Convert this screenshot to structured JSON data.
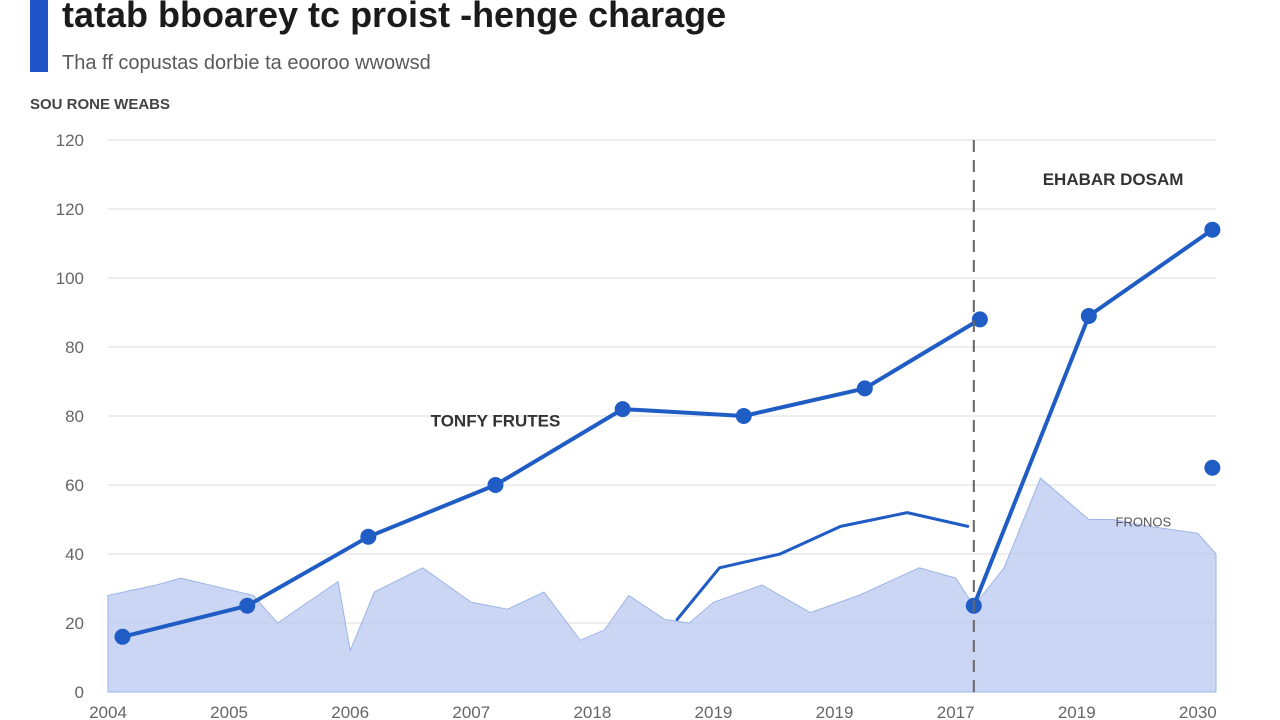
{
  "header": {
    "title": "tatab bboarey tc proist -henge charage",
    "subtitle": "Tha ff copustas dorbie ta eooroo wwowsd",
    "ylabel": "SOU RONE WEABS"
  },
  "colors": {
    "accent": "#1f55c8",
    "line": "#1f5cc4",
    "area": "#b8c8f0",
    "grid": "#dedede",
    "divider": "#666666"
  },
  "chart_data": {
    "type": "line",
    "title": "tatab bboarey tc proist -henge charage",
    "subtitle": "Tha ff copustas dorbie ta eooroo wwowsd",
    "ylabel": "SOU RONE WEABS",
    "xlabel": "",
    "x_tick_labels": [
      "2004",
      "2005",
      "2006",
      "2007",
      "2018",
      "2019",
      "2019",
      "2017",
      "2019",
      "2030"
    ],
    "y_tick_labels": [
      "0",
      "20",
      "40",
      "60",
      "80",
      "80",
      "100",
      "120",
      "120"
    ],
    "ylim": [
      0,
      160
    ],
    "xlim": [
      0,
      9.15
    ],
    "grid": true,
    "divider_x": 7.15,
    "annotations": [
      {
        "text": "TONFY FRUTES",
        "x": 3.2,
        "y": 77
      },
      {
        "text": "EHABAR DOSAM",
        "x": 8.3,
        "y": 147
      },
      {
        "text": "FRONOS",
        "x": 8.55,
        "y": 48
      }
    ],
    "series": [
      {
        "style": "line-markers",
        "x": [
          0.12,
          1.15,
          2.15,
          3.2,
          4.25,
          5.25,
          6.25,
          7.2
        ],
        "y": [
          16,
          25,
          45,
          60,
          82,
          80,
          88,
          108
        ]
      },
      {
        "style": "line-markers",
        "x": [
          7.15,
          8.1,
          9.12
        ],
        "y": [
          25,
          109,
          134
        ]
      },
      {
        "style": "line",
        "x": [
          4.7,
          5.05,
          5.55,
          6.05,
          6.6,
          7.1
        ],
        "y": [
          21,
          36,
          40,
          48,
          52,
          48
        ]
      },
      {
        "style": "marker",
        "x": [
          9.12
        ],
        "y": [
          65
        ]
      },
      {
        "style": "area",
        "x": [
          0,
          0.4,
          0.6,
          1.2,
          1.4,
          1.9,
          2.0,
          2.2,
          2.6,
          3.0,
          3.3,
          3.6,
          3.9,
          4.1,
          4.3,
          4.6,
          4.8,
          5.0,
          5.4,
          5.8,
          6.2,
          6.7,
          7.0,
          7.15,
          7.4,
          7.7,
          7.9,
          8.1,
          8.3,
          8.6,
          9.0,
          9.15
        ],
        "y": [
          28,
          31,
          33,
          28,
          20,
          32,
          12,
          29,
          36,
          26,
          24,
          29,
          15,
          18,
          28,
          21,
          20,
          26,
          31,
          23,
          28,
          36,
          33,
          25,
          36,
          62,
          56,
          50,
          50,
          48,
          46,
          40
        ]
      }
    ]
  }
}
